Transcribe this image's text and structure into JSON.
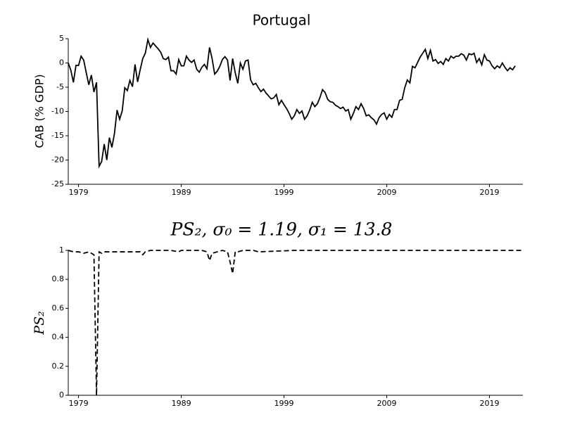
{
  "chart_data": [
    {
      "type": "line",
      "title": "Portugal",
      "ylabel": "CAB (% GDP)",
      "x": [
        1978,
        1978.25,
        1978.5,
        1978.75,
        1979,
        1979.25,
        1979.5,
        1979.75,
        1980,
        1980.25,
        1980.5,
        1980.75,
        1981,
        1981.25,
        1981.5,
        1981.75,
        1982,
        1982.25,
        1982.5,
        1982.75,
        1983,
        1983.25,
        1983.5,
        1983.75,
        1984,
        1984.25,
        1984.5,
        1984.75,
        1985,
        1985.25,
        1985.5,
        1985.75,
        1986,
        1986.25,
        1986.5,
        1986.75,
        1987,
        1987.25,
        1987.5,
        1987.75,
        1988,
        1988.25,
        1988.5,
        1988.75,
        1989,
        1989.25,
        1989.5,
        1989.75,
        1990,
        1990.25,
        1990.5,
        1990.75,
        1991,
        1991.25,
        1991.5,
        1991.75,
        1992,
        1992.25,
        1992.5,
        1992.75,
        1993,
        1993.25,
        1993.5,
        1993.75,
        1994,
        1994.25,
        1994.5,
        1994.75,
        1995,
        1995.25,
        1995.5,
        1995.75,
        1996,
        1996.25,
        1996.5,
        1996.75,
        1997,
        1997.25,
        1997.5,
        1997.75,
        1998,
        1998.25,
        1998.5,
        1998.75,
        1999,
        1999.25,
        1999.5,
        1999.75,
        2000,
        2000.25,
        2000.5,
        2000.75,
        2001,
        2001.25,
        2001.5,
        2001.75,
        2002,
        2002.25,
        2002.5,
        2002.75,
        2003,
        2003.25,
        2003.5,
        2003.75,
        2004,
        2004.25,
        2004.5,
        2004.75,
        2005,
        2005.25,
        2005.5,
        2005.75,
        2006,
        2006.25,
        2006.5,
        2006.75,
        2007,
        2007.25,
        2007.5,
        2007.75,
        2008,
        2008.25,
        2008.5,
        2008.75,
        2009,
        2009.25,
        2009.5,
        2009.75,
        2010,
        2010.25,
        2010.5,
        2010.75,
        2011,
        2011.25,
        2011.5,
        2011.75,
        2012,
        2012.25,
        2012.5,
        2012.75,
        2013,
        2013.25,
        2013.5,
        2013.75,
        2014,
        2014.25,
        2014.5,
        2014.75,
        2015,
        2015.25,
        2015.5,
        2015.75,
        2016,
        2016.25,
        2016.5,
        2016.75,
        2017,
        2017.25,
        2017.5,
        2017.75,
        2018,
        2018.25,
        2018.5,
        2018.75,
        2019,
        2019.25,
        2019.5,
        2019.75,
        2020,
        2020.25,
        2020.5,
        2020.75,
        2021,
        2021.25,
        2021.5
      ],
      "series": [
        {
          "name": "CAB",
          "color": "#000000",
          "values": [
            0,
            -1.5,
            -4,
            -0.5,
            -0.5,
            1.4,
            0.6,
            -2,
            -4.5,
            -2.5,
            -6,
            -4,
            -21.3,
            -20.3,
            -16.7,
            -20,
            -15.4,
            -17.4,
            -14.5,
            -9.7,
            -11.6,
            -9.9,
            -5.1,
            -5.7,
            -3.6,
            -4.9,
            -0.3,
            -3.9,
            -1.4,
            0.9,
            2,
            4.8,
            3.2,
            4.1,
            3.5,
            2.9,
            2.2,
            0.9,
            0.7,
            1.2,
            -1.6,
            -1.6,
            -2.3,
            0.7,
            -0.6,
            -0.6,
            1.4,
            0.6,
            0.1,
            0.6,
            -1.3,
            -1.9,
            -0.9,
            -0.3,
            -1.2,
            3.2,
            0.9,
            -2.3,
            -1.7,
            -0.7,
            0.7,
            1.3,
            0.6,
            -3.6,
            0.9,
            -2,
            -4.2,
            0,
            -1.3,
            0.4,
            0.6,
            -3.5,
            -4.5,
            -4.2,
            -5.1,
            -5.9,
            -5.4,
            -6.2,
            -6.8,
            -7.4,
            -7.2,
            -6.5,
            -8.6,
            -7.7,
            -8.6,
            -9.4,
            -10.4,
            -11.6,
            -10.9,
            -9.6,
            -10.4,
            -9.9,
            -11.6,
            -10.9,
            -9.7,
            -8.1,
            -9,
            -8.4,
            -7.1,
            -5.5,
            -6.1,
            -7.5,
            -8,
            -8.1,
            -8.7,
            -9,
            -9.4,
            -9.1,
            -9.9,
            -9.6,
            -11.6,
            -10.4,
            -9,
            -9.6,
            -8.4,
            -9.4,
            -10.9,
            -10.7,
            -11.3,
            -11.7,
            -12.6,
            -11.3,
            -10.6,
            -10.3,
            -11.6,
            -10.6,
            -11.2,
            -9.6,
            -9.6,
            -7.7,
            -7.5,
            -5.1,
            -3.5,
            -4.1,
            -0.7,
            -1,
            0.1,
            1.2,
            2,
            2.8,
            0.9,
            2.6,
            0.4,
            0.7,
            -0.1,
            0.3,
            -0.3,
            0.9,
            0.4,
            1.4,
            1,
            1.4,
            1.4,
            1.9,
            1.6,
            0.6,
            1.9,
            1.7,
            2,
            0.1,
            0.9,
            -0.4,
            1.7,
            0.6,
            0.4,
            -0.6,
            -1.2,
            -0.6,
            -1,
            0,
            -0.9,
            -1.6,
            -1,
            -1.4,
            -0.6
          ]
        }
      ],
      "xlim": [
        1978,
        2022.25
      ],
      "xticks": [
        1979,
        1989,
        1999,
        2009,
        2019
      ],
      "ylim": [
        -25,
        5
      ],
      "yticks": [
        5,
        0,
        -5,
        -10,
        -15,
        -20,
        -25
      ],
      "dashed": false
    },
    {
      "type": "line",
      "title": "PS₂, σ₀ = 1.19, σ₁ = 13.8",
      "ylabel": "PS₂",
      "x": [
        1978,
        1978.5,
        1979,
        1979.5,
        1980,
        1980.25,
        1980.5,
        1980.75,
        1981,
        1981.25,
        1981.5,
        1982,
        1983,
        1984,
        1985,
        1985.25,
        1985.5,
        1986,
        1987,
        1988,
        1988.75,
        1989,
        1990,
        1991,
        1991.5,
        1991.75,
        1992,
        1992.5,
        1993,
        1993.5,
        1993.75,
        1994,
        1994.25,
        1994.5,
        1995,
        1996,
        1996.5,
        2000,
        2010,
        2022.25
      ],
      "series": [
        {
          "name": "PS₂",
          "color": "#000000",
          "values": [
            1,
            0.99,
            0.99,
            0.98,
            0.99,
            0.98,
            0.97,
            0,
            0.99,
            0.98,
            0.99,
            0.99,
            0.99,
            0.99,
            0.99,
            0.97,
            0.99,
            1,
            1,
            1,
            0.99,
            1,
            1,
            1,
            0.99,
            0.93,
            0.98,
            0.99,
            1,
            0.99,
            0.92,
            0.84,
            0.99,
            0.99,
            1,
            1,
            0.99,
            1,
            1,
            1
          ]
        }
      ],
      "xlim": [
        1978,
        2022.25
      ],
      "xticks": [
        1979,
        1989,
        1999,
        2009,
        2019
      ],
      "ylim": [
        0,
        1
      ],
      "yticks": [
        0,
        0.2,
        0.4,
        0.6,
        0.8,
        1
      ],
      "dashed": true
    }
  ]
}
